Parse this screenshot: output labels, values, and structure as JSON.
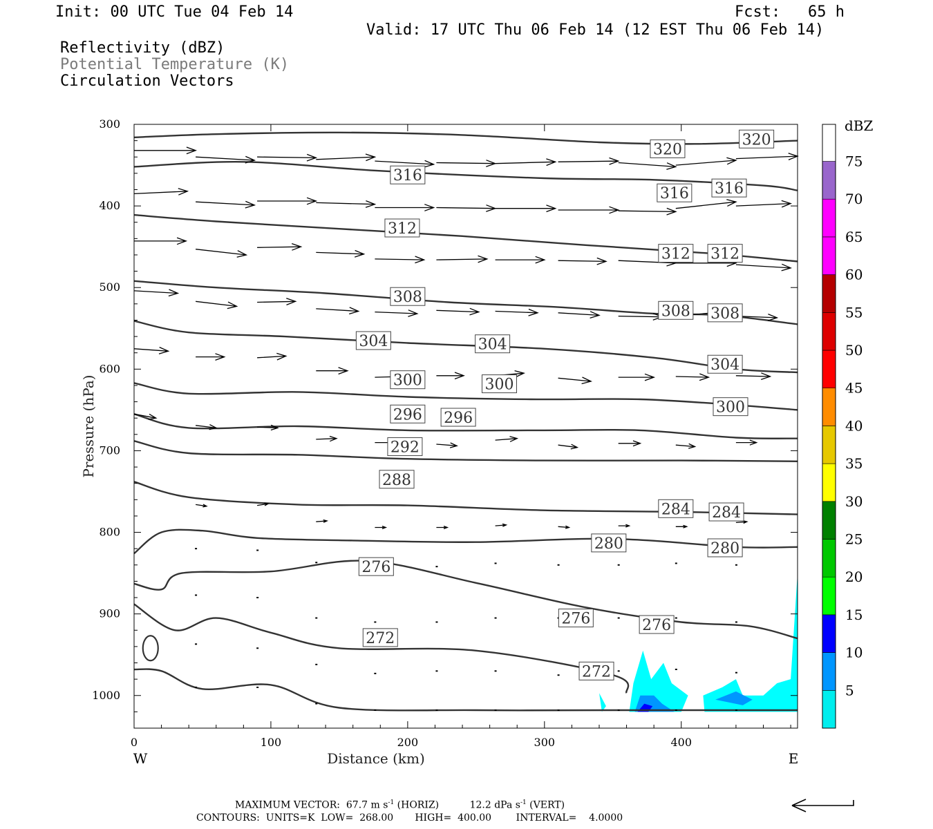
{
  "header": {
    "init": "Init: 00 UTC Tue 04 Feb 14",
    "fcst": "Fcst:   65 h",
    "valid": "Valid: 17 UTC Thu 06 Feb 14 (12 EST Thu 06 Feb 14)",
    "fields": [
      "Reflectivity (dBZ)",
      "Potential Temperature (K)",
      "Circulation Vectors"
    ]
  },
  "chart_data": {
    "type": "cross-section",
    "xlabel": "Distance (km)",
    "ylabel": "Pressure (hPa)",
    "xlim": [
      0,
      485
    ],
    "ylim": [
      1040,
      300
    ],
    "xticks": [
      0,
      100,
      200,
      300,
      400
    ],
    "yticks": [
      300,
      400,
      500,
      600,
      700,
      800,
      900,
      1000
    ],
    "west_label": "W",
    "east_label": "E",
    "theta_contours": [
      {
        "level": 320,
        "pts": [
          [
            0,
            316
          ],
          [
            60,
            312
          ],
          [
            150,
            310
          ],
          [
            240,
            313
          ],
          [
            340,
            322
          ],
          [
            410,
            324
          ],
          [
            485,
            320
          ]
        ],
        "labels": [
          [
            390,
            330
          ],
          [
            455,
            318
          ]
        ]
      },
      {
        "level": 316,
        "pts": [
          [
            0,
            352
          ],
          [
            80,
            346
          ],
          [
            180,
            357
          ],
          [
            300,
            366
          ],
          [
            380,
            368
          ],
          [
            460,
            375
          ],
          [
            485,
            381
          ]
        ],
        "labels": [
          [
            200,
            362
          ],
          [
            395,
            384
          ],
          [
            435,
            378
          ]
        ]
      },
      {
        "level": 312,
        "pts": [
          [
            0,
            411
          ],
          [
            60,
            419
          ],
          [
            150,
            428
          ],
          [
            240,
            437
          ],
          [
            330,
            448
          ],
          [
            420,
            458
          ],
          [
            485,
            468
          ]
        ],
        "labels": [
          [
            196,
            427
          ],
          [
            396,
            458
          ],
          [
            432,
            458
          ]
        ]
      },
      {
        "level": 308,
        "pts": [
          [
            0,
            492
          ],
          [
            60,
            500
          ],
          [
            140,
            507
          ],
          [
            230,
            518
          ],
          [
            310,
            524
          ],
          [
            380,
            532
          ],
          [
            430,
            534
          ],
          [
            485,
            545
          ]
        ],
        "labels": [
          [
            200,
            511
          ],
          [
            396,
            528
          ],
          [
            432,
            531
          ]
        ]
      },
      {
        "level": 304,
        "pts": [
          [
            0,
            541
          ],
          [
            40,
            555
          ],
          [
            110,
            560
          ],
          [
            200,
            568
          ],
          [
            300,
            575
          ],
          [
            380,
            586
          ],
          [
            440,
            600
          ],
          [
            485,
            604
          ]
        ],
        "labels": [
          [
            175,
            565
          ],
          [
            262,
            569
          ],
          [
            432,
            594
          ]
        ]
      },
      {
        "level": 300,
        "pts": [
          [
            0,
            617
          ],
          [
            40,
            630
          ],
          [
            120,
            628
          ],
          [
            200,
            634
          ],
          [
            290,
            637
          ],
          [
            370,
            637
          ],
          [
            440,
            644
          ],
          [
            485,
            650
          ]
        ],
        "labels": [
          [
            200,
            613
          ],
          [
            267,
            618
          ],
          [
            436,
            646
          ]
        ]
      },
      {
        "level": 296,
        "pts": [
          [
            0,
            655
          ],
          [
            40,
            672
          ],
          [
            120,
            670
          ],
          [
            200,
            675
          ],
          [
            300,
            675
          ],
          [
            370,
            675
          ],
          [
            440,
            684
          ],
          [
            485,
            685
          ]
        ],
        "labels": [
          [
            200,
            655
          ],
          [
            237,
            659
          ]
        ]
      },
      {
        "level": 292,
        "pts": [
          [
            0,
            688
          ],
          [
            40,
            703
          ],
          [
            120,
            705
          ],
          [
            200,
            710
          ],
          [
            300,
            712
          ],
          [
            400,
            712
          ],
          [
            485,
            713
          ]
        ],
        "labels": [
          [
            198,
            695
          ]
        ]
      },
      {
        "level": 288,
        "pts": [
          [
            0,
            738
          ],
          [
            40,
            757
          ],
          [
            120,
            766
          ],
          [
            200,
            767
          ],
          [
            300,
            773
          ],
          [
            400,
            775
          ],
          [
            485,
            778
          ]
        ],
        "labels": [
          [
            192,
            735
          ]
        ]
      },
      {
        "level": 284,
        "pts": [
          [
            0,
            826
          ],
          [
            20,
            800
          ],
          [
            50,
            798
          ],
          [
            90,
            807
          ],
          [
            160,
            810
          ],
          [
            250,
            812
          ],
          [
            350,
            808
          ],
          [
            440,
            818
          ],
          [
            485,
            818
          ]
        ],
        "labels": [
          [
            396,
            771
          ],
          [
            433,
            775
          ]
        ]
      },
      {
        "level": 280,
        "pts": [
          [
            0,
            863
          ],
          [
            20,
            870
          ],
          [
            35,
            850
          ],
          [
            100,
            848
          ],
          [
            170,
            835
          ],
          [
            250,
            862
          ],
          [
            330,
            892
          ],
          [
            400,
            910
          ],
          [
            450,
            915
          ],
          [
            485,
            930
          ]
        ],
        "labels": [
          [
            347,
            813
          ],
          [
            432,
            819
          ]
        ]
      },
      {
        "level": 276,
        "pts": [
          [
            0,
            888
          ],
          [
            30,
            920
          ],
          [
            60,
            905
          ],
          [
            100,
            923
          ],
          [
            150,
            942
          ],
          [
            250,
            945
          ],
          [
            350,
            975
          ],
          [
            360,
            997
          ]
        ],
        "labels": [
          [
            177,
            842
          ],
          [
            323,
            905
          ],
          [
            382,
            913
          ]
        ]
      },
      {
        "level": 272,
        "pts": [
          [
            0,
            968
          ],
          [
            20,
            970
          ],
          [
            50,
            992
          ],
          [
            100,
            987
          ],
          [
            150,
            1015
          ],
          [
            250,
            1018
          ],
          [
            350,
            1018
          ],
          [
            485,
            1018
          ]
        ],
        "labels": [
          [
            180,
            929
          ],
          [
            338,
            970
          ]
        ]
      }
    ],
    "reflectivity_regions": [
      {
        "dbz": 5,
        "color": "#00ffff",
        "pts": [
          [
            340,
            997
          ],
          [
            345,
            1013
          ],
          [
            342,
            1020
          ]
        ]
      },
      {
        "dbz": 5,
        "color": "#00ffff",
        "pts": [
          [
            362,
            1020
          ],
          [
            365,
            985
          ],
          [
            372,
            945
          ],
          [
            378,
            980
          ],
          [
            387,
            960
          ],
          [
            393,
            985
          ],
          [
            405,
            1000
          ],
          [
            400,
            1020
          ]
        ]
      },
      {
        "dbz": 5,
        "color": "#00ffff",
        "pts": [
          [
            417,
            1020
          ],
          [
            416,
            1000
          ],
          [
            430,
            990
          ],
          [
            440,
            980
          ],
          [
            445,
            1000
          ],
          [
            460,
            1000
          ],
          [
            470,
            985
          ],
          [
            480,
            980
          ],
          [
            485,
            850
          ],
          [
            485,
            1020
          ]
        ]
      },
      {
        "dbz": 10,
        "color": "#0096ff",
        "pts": [
          [
            366,
            1020
          ],
          [
            370,
            1000
          ],
          [
            380,
            1000
          ],
          [
            386,
            1010
          ],
          [
            395,
            1020
          ]
        ]
      },
      {
        "dbz": 10,
        "color": "#0096ff",
        "pts": [
          [
            425,
            1005
          ],
          [
            440,
            995
          ],
          [
            452,
            1005
          ],
          [
            445,
            1012
          ]
        ]
      },
      {
        "dbz": 15,
        "color": "#0000ff",
        "pts": [
          [
            368,
            1020
          ],
          [
            373,
            1010
          ],
          [
            379,
            1013
          ],
          [
            376,
            1020
          ]
        ]
      }
    ],
    "vectors": [
      [
        0,
        332,
        45,
        332
      ],
      [
        45,
        340,
        88,
        344
      ],
      [
        90,
        340,
        133,
        341
      ],
      [
        133,
        343,
        176,
        340
      ],
      [
        176,
        345,
        219,
        349
      ],
      [
        221,
        347,
        264,
        348
      ],
      [
        264,
        348,
        308,
        346
      ],
      [
        310,
        346,
        354,
        345
      ],
      [
        354,
        347,
        396,
        352
      ],
      [
        396,
        350,
        440,
        344
      ],
      [
        440,
        342,
        485,
        339
      ],
      [
        0,
        385,
        39,
        382
      ],
      [
        45,
        395,
        88,
        399
      ],
      [
        90,
        394,
        133,
        394
      ],
      [
        133,
        396,
        176,
        398
      ],
      [
        176,
        402,
        219,
        402
      ],
      [
        221,
        402,
        264,
        403
      ],
      [
        264,
        403,
        308,
        403
      ],
      [
        310,
        405,
        354,
        405
      ],
      [
        354,
        406,
        396,
        407
      ],
      [
        396,
        403,
        440,
        395
      ],
      [
        440,
        400,
        480,
        397
      ],
      [
        0,
        443,
        38,
        443
      ],
      [
        45,
        453,
        82,
        460
      ],
      [
        90,
        451,
        122,
        450
      ],
      [
        133,
        457,
        168,
        459
      ],
      [
        176,
        465,
        212,
        466
      ],
      [
        221,
        466,
        258,
        465
      ],
      [
        264,
        466,
        300,
        466
      ],
      [
        310,
        467,
        345,
        468
      ],
      [
        354,
        467,
        396,
        470
      ],
      [
        396,
        470,
        440,
        470
      ],
      [
        440,
        472,
        480,
        476
      ],
      [
        0,
        504,
        32,
        507
      ],
      [
        45,
        517,
        75,
        523
      ],
      [
        90,
        518,
        118,
        517
      ],
      [
        133,
        526,
        164,
        529
      ],
      [
        176,
        530,
        207,
        532
      ],
      [
        221,
        528,
        252,
        530
      ],
      [
        264,
        529,
        295,
        531
      ],
      [
        310,
        531,
        340,
        534
      ],
      [
        354,
        535,
        386,
        536
      ],
      [
        396,
        535,
        430,
        530
      ],
      [
        440,
        535,
        470,
        537
      ],
      [
        0,
        575,
        25,
        578
      ],
      [
        45,
        585,
        66,
        585
      ],
      [
        90,
        586,
        111,
        584
      ],
      [
        133,
        602,
        156,
        602
      ],
      [
        176,
        610,
        197,
        609
      ],
      [
        221,
        608,
        241,
        608
      ],
      [
        264,
        608,
        285,
        605
      ],
      [
        310,
        611,
        334,
        615
      ],
      [
        354,
        610,
        380,
        610
      ],
      [
        396,
        609,
        420,
        610
      ],
      [
        440,
        608,
        465,
        609
      ],
      [
        0,
        655,
        16,
        660
      ],
      [
        45,
        669,
        60,
        672
      ],
      [
        90,
        671,
        105,
        672
      ],
      [
        133,
        686,
        148,
        685
      ],
      [
        176,
        690,
        190,
        690
      ],
      [
        221,
        692,
        236,
        694
      ],
      [
        264,
        687,
        280,
        685
      ],
      [
        310,
        693,
        324,
        696
      ],
      [
        354,
        691,
        370,
        691
      ],
      [
        396,
        693,
        410,
        695
      ],
      [
        440,
        690,
        455,
        690
      ],
      [
        45,
        766,
        53,
        768
      ],
      [
        90,
        767,
        98,
        765
      ],
      [
        133,
        787,
        141,
        786
      ],
      [
        176,
        794,
        184,
        794
      ],
      [
        221,
        794,
        229,
        794
      ],
      [
        264,
        792,
        272,
        791
      ],
      [
        310,
        793,
        318,
        794
      ],
      [
        354,
        792,
        362,
        792
      ],
      [
        396,
        793,
        404,
        793
      ],
      [
        440,
        788,
        448,
        787
      ]
    ],
    "dots": [
      [
        45,
        820
      ],
      [
        90,
        822
      ],
      [
        133,
        837
      ],
      [
        176,
        845
      ],
      [
        221,
        842
      ],
      [
        264,
        838
      ],
      [
        310,
        840
      ],
      [
        354,
        840
      ],
      [
        396,
        838
      ],
      [
        440,
        840
      ],
      [
        45,
        877
      ],
      [
        90,
        880
      ],
      [
        133,
        905
      ],
      [
        176,
        910
      ],
      [
        221,
        910
      ],
      [
        264,
        905
      ],
      [
        310,
        905
      ],
      [
        354,
        905
      ],
      [
        396,
        905
      ],
      [
        440,
        910
      ],
      [
        45,
        937
      ],
      [
        90,
        942
      ],
      [
        133,
        962
      ],
      [
        176,
        973
      ],
      [
        221,
        970
      ],
      [
        264,
        970
      ],
      [
        310,
        975
      ],
      [
        354,
        970
      ],
      [
        396,
        968
      ],
      [
        440,
        972
      ],
      [
        45,
        990
      ],
      [
        90,
        990
      ],
      [
        133,
        1010
      ],
      [
        176,
        1018
      ],
      [
        221,
        1018
      ],
      [
        264,
        1018
      ],
      [
        310,
        1018
      ],
      [
        354,
        1018
      ],
      [
        396,
        1018
      ],
      [
        440,
        1018
      ]
    ],
    "colorbar": {
      "title": "dBZ",
      "labels": [
        "5",
        "10",
        "15",
        "20",
        "25",
        "30",
        "35",
        "40",
        "45",
        "50",
        "55",
        "60",
        "65",
        "70",
        "75"
      ],
      "colors": [
        "#00eeee",
        "#0096ff",
        "#0000ff",
        "#00ff00",
        "#00c800",
        "#008000",
        "#ffff00",
        "#e6c800",
        "#ff8c00",
        "#ff0000",
        "#dd0000",
        "#b40000",
        "#ff00ff",
        "#ff00ff",
        "#9966cc"
      ]
    }
  },
  "footer": {
    "line1_a": "MAXIMUM VECTOR:  67.7 m s",
    "sup1": "-1",
    "line1_b": " (HORIZ)",
    "line1_c": "12.2 dPa s",
    "sup2": "-1",
    "line1_d": " (VERT)",
    "line2": "CONTOURS:  UNITS=K  LOW=  268.00       HIGH=  400.00        INTERVAL=    4.0000"
  }
}
